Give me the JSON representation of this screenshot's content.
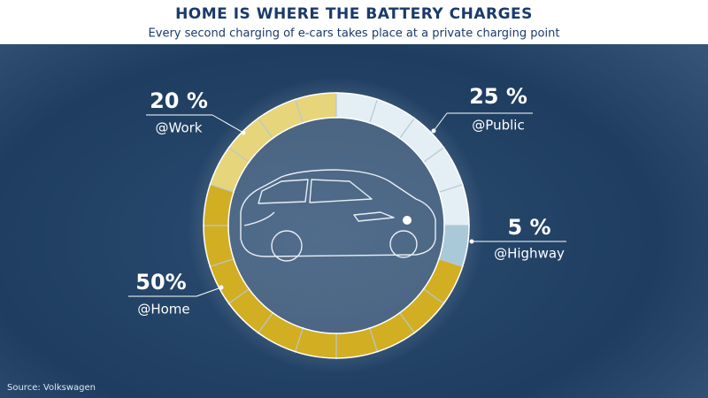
{
  "chart_data": {
    "type": "pie",
    "title": "HOME IS WHERE THE BATTERY CHARGES",
    "subtitle": "Every second charging of e-cars takes place at a private charging point",
    "categories": [
      "@Public",
      "@Highway",
      "@Home",
      "@Work"
    ],
    "values": [
      25,
      5,
      50,
      20
    ],
    "value_labels": [
      "25 %",
      "5 %",
      "50%",
      "20 %"
    ],
    "colors": [
      "#e3eff4",
      "#a9c9d9",
      "#d2ae22",
      "#e6d57a"
    ],
    "source": "Source: Volkswagen"
  }
}
